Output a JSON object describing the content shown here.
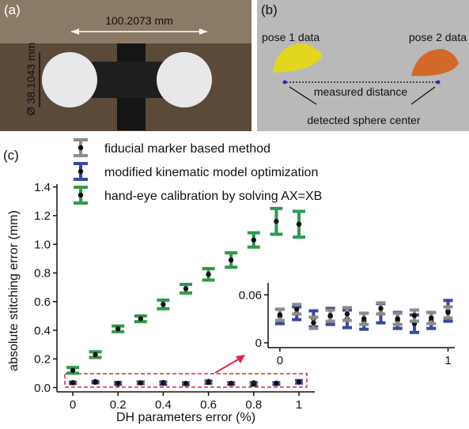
{
  "panel_a": {
    "label": "(a)",
    "length": "100.2073 mm",
    "diameter": "Ø 38.1043 mm"
  },
  "panel_b": {
    "label": "(b)",
    "pose1": "pose 1 data",
    "pose2": "pose 2 data",
    "distance": "measured distance",
    "center": "detected sphere center"
  },
  "chart_data": {
    "type": "errorbar",
    "panel_label": "(c)",
    "x_label": "DH parameters error (%)",
    "y_label": "absolute stitching error (mm)",
    "x": [
      0,
      0.1,
      0.2,
      0.3,
      0.4,
      0.5,
      0.6,
      0.7,
      0.8,
      0.9,
      1
    ],
    "xlim": [
      -0.07,
      1.07
    ],
    "ylim": [
      -0.03,
      1.42
    ],
    "xticks": [
      0,
      0.2,
      0.4,
      0.6,
      0.8,
      1
    ],
    "yticks": [
      {
        "value": 0,
        "label": "0.0"
      },
      0.2,
      0.4,
      0.6,
      0.8,
      {
        "value": 1,
        "label": "1.0"
      },
      1.2,
      1.4
    ],
    "series": [
      {
        "name": "fiducial marker based method",
        "color": "#8c8c8c",
        "values": [
          0.035,
          0.042,
          0.025,
          0.034,
          0.036,
          0.03,
          0.043,
          0.03,
          0.034,
          0.031,
          0.038
        ],
        "errors": [
          0.007,
          0.006,
          0.007,
          0.007,
          0.008,
          0.007,
          0.007,
          0.007,
          0.007,
          0.007,
          0.007
        ]
      },
      {
        "name": "modified kinematic model optimization",
        "color": "#3a47a0",
        "values": [
          0.033,
          0.037,
          0.03,
          0.033,
          0.03,
          0.027,
          0.037,
          0.028,
          0.024,
          0.028,
          0.04
        ],
        "errors": [
          0.009,
          0.008,
          0.01,
          0.01,
          0.011,
          0.01,
          0.012,
          0.01,
          0.011,
          0.01,
          0.013
        ]
      },
      {
        "name": "hand-eye calibration by solving  AX=XB",
        "color": "#2e9a4a",
        "values": [
          0.12,
          0.23,
          0.41,
          0.48,
          0.58,
          0.69,
          0.79,
          0.89,
          1.03,
          1.16,
          1.14
        ],
        "errors": [
          0.02,
          0.02,
          0.02,
          0.02,
          0.03,
          0.03,
          0.04,
          0.05,
          0.05,
          0.09,
          0.09
        ]
      }
    ],
    "inset": {
      "xlim": [
        -0.07,
        1.04
      ],
      "ylim": [
        -0.006,
        0.075
      ],
      "xticks": [
        0,
        1
      ],
      "yticks": [
        0,
        0.06
      ]
    }
  }
}
